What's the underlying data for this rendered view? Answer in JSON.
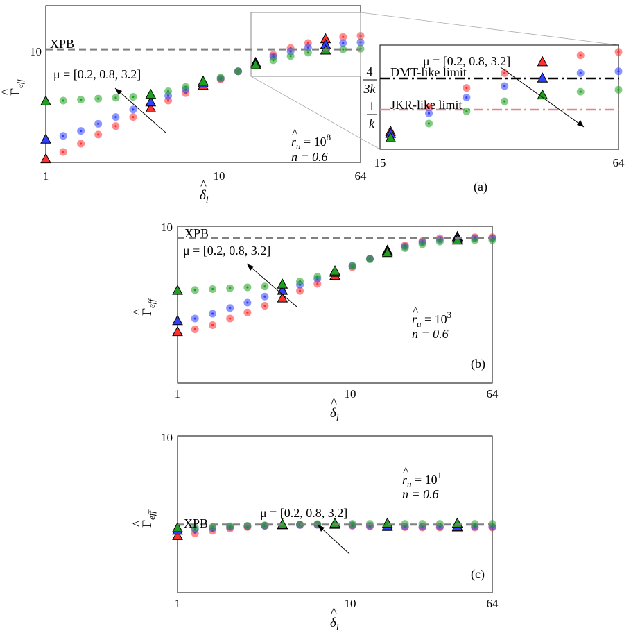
{
  "colors": {
    "red": "#ff3030",
    "blue": "#3040ff",
    "green": "#20a020",
    "purple": "#7030c0",
    "xpb_line": "#808080",
    "jkr_line": "#d98a8a",
    "dmt_line": "#000000"
  },
  "legend_text": "μ = [0.2, 0.8, 3.2]",
  "xpb_label": "XPB",
  "xlabel": "δ",
  "xlabel_sub": "l",
  "ylabel": "Γ",
  "ylabel_sub": "eff",
  "panels": [
    {
      "id": "a",
      "tag": "(a)",
      "ru_exp": "8",
      "n": "n = 0.6",
      "xticks": [
        "1",
        "10",
        "64"
      ],
      "ytick": "10"
    },
    {
      "id": "b",
      "tag": "(b)",
      "ru_exp": "3",
      "n": "n = 0.6",
      "xticks": [
        "1",
        "10",
        "64"
      ],
      "ytick": "10"
    },
    {
      "id": "c",
      "tag": "(c)",
      "ru_exp": "1",
      "n": "n = 0.6",
      "xticks": [
        "1",
        "10",
        "64"
      ],
      "ytick": "10"
    }
  ],
  "inset": {
    "xticks": [
      "15",
      "64"
    ],
    "dmt_label": "DMT-like limit",
    "jkr_label": "JKR-like limit",
    "dmt_frac_num": "4",
    "dmt_frac_den": "3k",
    "jkr_frac_num": "1",
    "jkr_frac_den": "k"
  },
  "chart_data": [
    {
      "type": "scatter",
      "panel": "a",
      "x_scale": "log",
      "xlim": [
        1,
        64
      ],
      "y_scale": "log",
      "ylim": [
        4.2,
        14
      ],
      "xlabel": "δ_l",
      "ylabel": "Γ_eff",
      "annotations": [
        "XPB",
        "μ = [0.2, 0.8, 3.2]",
        "r_u = 10^8",
        "n = 0.6",
        "(a)"
      ],
      "reference_lines": [
        {
          "name": "XPB",
          "y": 10
        }
      ],
      "series": [
        {
          "mu": 0.2,
          "color": "red",
          "x": [
            1,
            1.26,
            1.59,
            2,
            2.52,
            3.17,
            4,
            5.04,
            6.35,
            8,
            10.08,
            12.7,
            16,
            20.2,
            25.4,
            32,
            40.3,
            50.8,
            64
          ],
          "y": [
            4.3,
            4.55,
            4.85,
            5.2,
            5.55,
            5.95,
            6.35,
            6.75,
            7.15,
            7.55,
            7.95,
            8.45,
            9.0,
            9.6,
            10.1,
            10.5,
            10.8,
            11.0,
            11.1
          ]
        },
        {
          "mu": 0.8,
          "color": "blue",
          "x": [
            1,
            1.26,
            1.59,
            2,
            2.52,
            3.17,
            4,
            5.04,
            6.35,
            8,
            10.08,
            12.7,
            16,
            20.2,
            25.4,
            32,
            40.3,
            50.8,
            64
          ],
          "y": [
            5.0,
            5.15,
            5.35,
            5.65,
            5.95,
            6.3,
            6.65,
            7.0,
            7.35,
            7.7,
            8.0,
            8.45,
            8.95,
            9.45,
            9.85,
            10.15,
            10.35,
            10.5,
            10.55
          ]
        },
        {
          "mu": 3.2,
          "color": "green",
          "x": [
            1,
            1.26,
            1.59,
            2,
            2.52,
            3.17,
            4,
            5.04,
            6.35,
            8,
            10.08,
            12.7,
            16,
            20.2,
            25.4,
            32,
            40.3,
            50.8,
            64
          ],
          "y": [
            6.7,
            6.75,
            6.8,
            6.85,
            6.9,
            6.95,
            7.05,
            7.25,
            7.5,
            7.8,
            8.05,
            8.45,
            8.85,
            9.2,
            9.5,
            9.75,
            9.9,
            10.0,
            10.05
          ]
        }
      ]
    },
    {
      "type": "scatter",
      "panel": "b",
      "x_scale": "log",
      "xlim": [
        1,
        64
      ],
      "y_scale": "log",
      "ylim": [
        1.6,
        10
      ],
      "xlabel": "δ_l",
      "ylabel": "Γ_eff",
      "annotations": [
        "XPB",
        "μ = [0.2, 0.8, 3.2]",
        "r_u = 10^3",
        "n = 0.6",
        "(b)"
      ],
      "reference_lines": [
        {
          "name": "XPB",
          "y": 8.7
        }
      ],
      "series": [
        {
          "mu": 0.2,
          "color": "red",
          "x": [
            1,
            1.26,
            1.59,
            2,
            2.52,
            3.17,
            4,
            5.04,
            6.35,
            8,
            10.08,
            12.7,
            16,
            20.2,
            25.4,
            32,
            40.3,
            50.8,
            64
          ],
          "y": [
            2.9,
            3.0,
            3.15,
            3.4,
            3.65,
            3.95,
            4.3,
            4.7,
            5.1,
            5.6,
            6.2,
            6.85,
            7.5,
            8.0,
            8.4,
            8.7,
            8.8,
            8.8,
            8.8
          ]
        },
        {
          "mu": 0.8,
          "color": "blue",
          "x": [
            1,
            1.26,
            1.59,
            2,
            2.52,
            3.17,
            4,
            5.04,
            6.35,
            8,
            10.08,
            12.7,
            16,
            20.2,
            25.4,
            32,
            40.3,
            50.8,
            64
          ],
          "y": [
            3.3,
            3.4,
            3.6,
            3.85,
            4.1,
            4.4,
            4.7,
            5.05,
            5.4,
            5.8,
            6.3,
            6.85,
            7.4,
            7.9,
            8.3,
            8.55,
            8.65,
            8.7,
            8.7
          ]
        },
        {
          "mu": 3.2,
          "color": "green",
          "x": [
            1,
            1.26,
            1.59,
            2,
            2.52,
            3.17,
            4,
            5.04,
            6.35,
            8,
            10.08,
            12.7,
            16,
            20.2,
            25.4,
            32,
            40.3,
            50.8,
            64
          ],
          "y": [
            4.7,
            4.75,
            4.8,
            4.85,
            4.9,
            4.95,
            5.05,
            5.25,
            5.55,
            5.9,
            6.3,
            6.8,
            7.3,
            7.75,
            8.1,
            8.35,
            8.45,
            8.5,
            8.5
          ]
        }
      ]
    },
    {
      "type": "scatter",
      "panel": "c",
      "x_scale": "log",
      "xlim": [
        1,
        64
      ],
      "y_scale": "log",
      "ylim": [
        1.6,
        10
      ],
      "xlabel": "δ_l",
      "ylabel": "Γ_eff",
      "annotations": [
        "XPB",
        "μ = [0.2, 0.8, 3.2]",
        "r_u = 10^1",
        "n = 0.6",
        "(c)"
      ],
      "reference_lines": [
        {
          "name": "XPB",
          "y": 3.55
        }
      ],
      "series": [
        {
          "mu": 0.2,
          "color": "red",
          "x": [
            1,
            1.26,
            1.59,
            2,
            2.52,
            3.17,
            4,
            5.04,
            6.35,
            8,
            10.08,
            12.7,
            16,
            20.2,
            25.4,
            32,
            40.3,
            50.8,
            64
          ],
          "y": [
            3.1,
            3.2,
            3.3,
            3.38,
            3.45,
            3.5,
            3.52,
            3.54,
            3.55,
            3.55,
            3.5,
            3.47,
            3.45,
            3.44,
            3.43,
            3.43,
            3.43,
            3.43,
            3.43
          ]
        },
        {
          "mu": 0.8,
          "color": "blue",
          "x": [
            1,
            1.26,
            1.59,
            2,
            2.52,
            3.17,
            4,
            5.04,
            6.35,
            8,
            10.08,
            12.7,
            16,
            20.2,
            25.4,
            32,
            40.3,
            50.8,
            64
          ],
          "y": [
            3.3,
            3.35,
            3.4,
            3.45,
            3.48,
            3.5,
            3.52,
            3.53,
            3.54,
            3.54,
            3.52,
            3.5,
            3.48,
            3.47,
            3.46,
            3.46,
            3.46,
            3.46,
            3.46
          ]
        },
        {
          "mu": 3.2,
          "color": "green",
          "x": [
            1,
            1.26,
            1.59,
            2,
            2.52,
            3.17,
            4,
            5.04,
            6.35,
            8,
            10.08,
            12.7,
            16,
            20.2,
            25.4,
            32,
            40.3,
            50.8,
            64
          ],
          "y": [
            3.4,
            3.42,
            3.45,
            3.48,
            3.5,
            3.52,
            3.54,
            3.56,
            3.57,
            3.58,
            3.58,
            3.58,
            3.58,
            3.58,
            3.58,
            3.58,
            3.58,
            3.58,
            3.58
          ]
        }
      ]
    }
  ]
}
